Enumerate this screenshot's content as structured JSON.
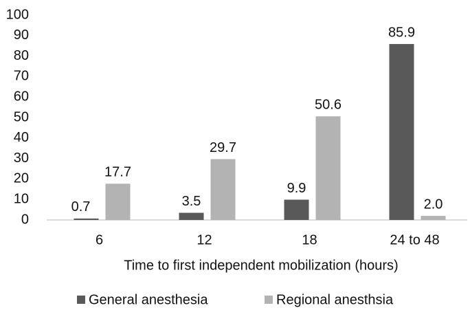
{
  "chart_data": {
    "type": "bar",
    "x_label": "Time to first independent mobilization (hours)",
    "categories": [
      "6",
      "12",
      "18",
      "24 to 48"
    ],
    "series": [
      {
        "name": "General anesthesia",
        "color": "#595959",
        "values": [
          0.7,
          3.5,
          9.9,
          85.9
        ],
        "value_labels": [
          "0.7",
          "3.5",
          "9.9",
          "85.9"
        ]
      },
      {
        "name": "Regional anesthsia",
        "color": "#b3b3b3",
        "values": [
          17.7,
          29.7,
          50.6,
          2.0
        ],
        "value_labels": [
          "17.7",
          "29.7",
          "50.6",
          "2.0"
        ]
      }
    ],
    "ylim": [
      0,
      100
    ],
    "yticks": [
      0,
      10,
      20,
      30,
      40,
      50,
      60,
      70,
      80,
      90,
      100
    ],
    "grid": false,
    "legend": "bottom"
  }
}
